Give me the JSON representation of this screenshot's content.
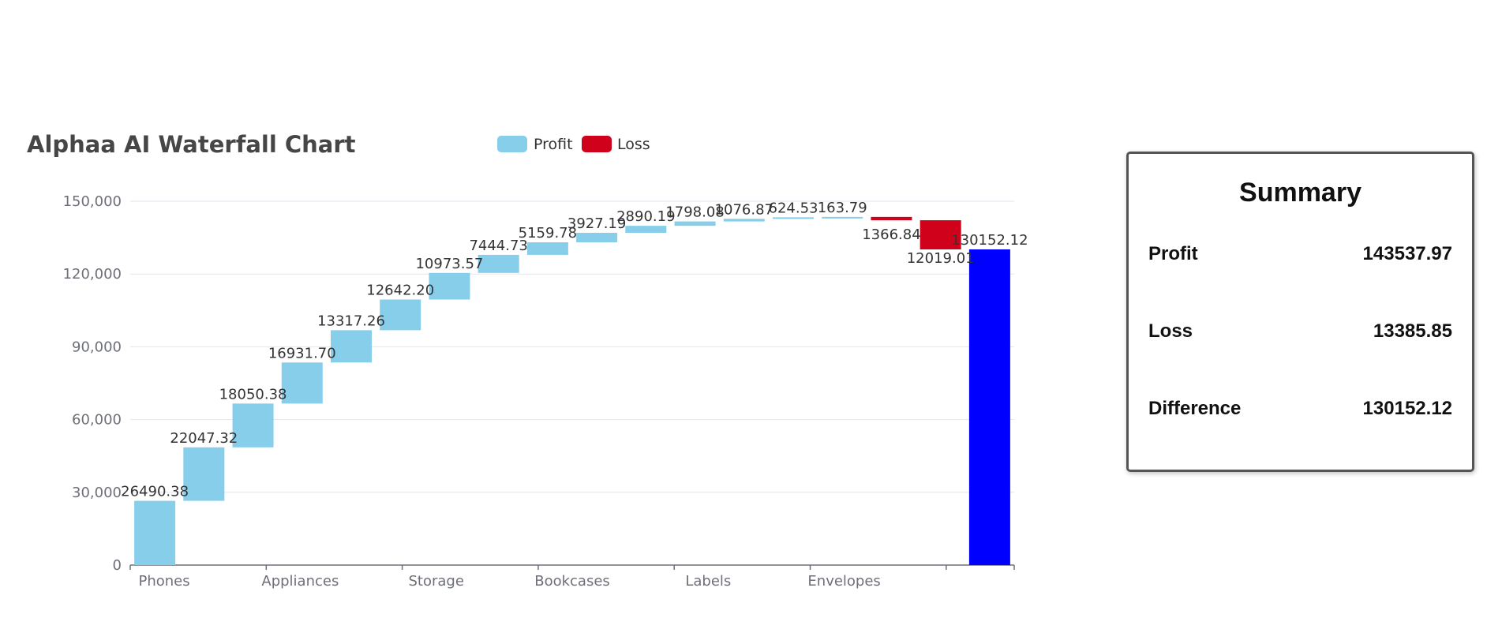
{
  "chart_data": {
    "type": "bar",
    "title": "Alphaa AI Waterfall Chart",
    "legend": [
      {
        "name": "Profit",
        "color": "#87ceeb"
      },
      {
        "name": "Loss",
        "color": "#d0021b"
      }
    ],
    "legend_position": "top-center",
    "total_color": "#0000ff",
    "categories": [
      "Phones",
      "",
      "Appliances",
      "",
      "Storage",
      "",
      "Bookcases",
      "",
      "Labels",
      "",
      "Envelopes",
      "",
      ""
    ],
    "x_tick_labels": [
      "Phones",
      "Appliances",
      "Storage",
      "Bookcases",
      "Labels",
      "Envelopes"
    ],
    "bars": [
      {
        "kind": "profit",
        "value": 26490.38,
        "label": "26490.38"
      },
      {
        "kind": "profit",
        "value": 22047.32,
        "label": "22047.32"
      },
      {
        "kind": "profit",
        "value": 18050.38,
        "label": "18050.38"
      },
      {
        "kind": "profit",
        "value": 16931.7,
        "label": "16931.70"
      },
      {
        "kind": "profit",
        "value": 13317.26,
        "label": "13317.26"
      },
      {
        "kind": "profit",
        "value": 12642.2,
        "label": "12642.20"
      },
      {
        "kind": "profit",
        "value": 10973.57,
        "label": "10973.57"
      },
      {
        "kind": "profit",
        "value": 7444.73,
        "label": "7444.73"
      },
      {
        "kind": "profit",
        "value": 5159.78,
        "label": "5159.78"
      },
      {
        "kind": "profit",
        "value": 3927.19,
        "label": "3927.19"
      },
      {
        "kind": "profit",
        "value": 2890.19,
        "label": "2890.19"
      },
      {
        "kind": "profit",
        "value": 1798.08,
        "label": "1798.08"
      },
      {
        "kind": "profit",
        "value": 1076.87,
        "label": "1076.87"
      },
      {
        "kind": "profit",
        "value": 624.53,
        "label": "624.53"
      },
      {
        "kind": "profit",
        "value": 163.79,
        "label": "163.79"
      },
      {
        "kind": "loss",
        "value": 1366.84,
        "label": "1366.84"
      },
      {
        "kind": "loss",
        "value": 12019.01,
        "label": "12019.01"
      },
      {
        "kind": "total",
        "value": 130152.12,
        "label": "130152.12"
      }
    ],
    "ylim": [
      0,
      150000
    ],
    "y_ticks": [
      "0",
      "30,000",
      "60,000",
      "90,000",
      "120,000",
      "150,000"
    ],
    "y_tick_values": [
      0,
      30000,
      60000,
      90000,
      120000,
      150000
    ],
    "grid": true,
    "xlabel": "",
    "ylabel": ""
  },
  "summary": {
    "title": "Summary",
    "profit_label": "Profit",
    "profit_value": "143537.97",
    "loss_label": "Loss",
    "loss_value": "13385.85",
    "difference_label": "Difference",
    "difference_value": "130152.12"
  }
}
